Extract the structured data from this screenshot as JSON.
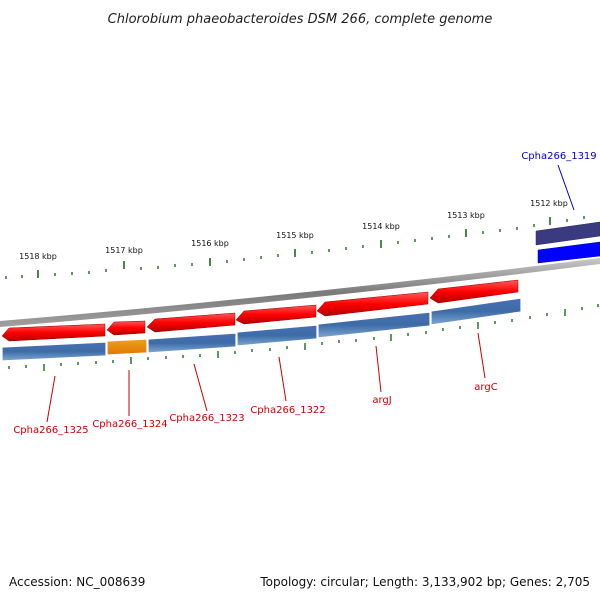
{
  "title": "Chlorobium phaeobacteroides DSM 266, complete genome",
  "footer": {
    "accession": "Accession: NC_008639",
    "summary": "Topology: circular; Length: 3,133,902 bp; Genes: 2,705"
  },
  "scale_labels": [
    "1518 kbp",
    "1517 kbp",
    "1516 kbp",
    "1515 kbp",
    "1514 kbp",
    "1513 kbp",
    "1512 kbp"
  ],
  "gene_labels": [
    {
      "text": "Cpha266_1319",
      "color": "#0000cc"
    },
    {
      "text": "Cpha266_1325",
      "color": "#cc0000"
    },
    {
      "text": "Cpha266_1324",
      "color": "#cc0000"
    },
    {
      "text": "Cpha266_1323",
      "color": "#cc0000"
    },
    {
      "text": "Cpha266_1322",
      "color": "#cc0000"
    },
    {
      "text": "argJ",
      "color": "#cc0000"
    },
    {
      "text": "argC",
      "color": "#cc0000"
    }
  ],
  "colors": {
    "reverse_gene": "#ff0000",
    "forward_gene": "#0000ff",
    "highlight_gene": "#ff8c00",
    "cds_band": "#4a7fb0",
    "backbone": "#888888",
    "tick": "#1a6b1a",
    "purple_gene": "#3a3a80"
  }
}
